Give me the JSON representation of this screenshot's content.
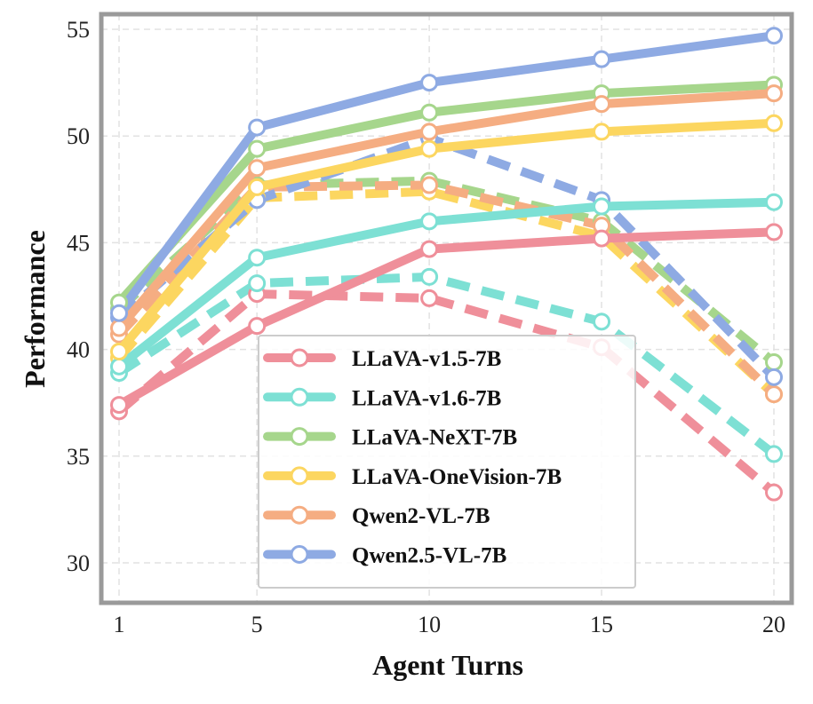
{
  "chart_data": {
    "type": "line",
    "xlabel": "Agent Turns",
    "ylabel": "Performance",
    "x": [
      1,
      5,
      10,
      15,
      20
    ],
    "xticks": [
      "1",
      "5",
      "10",
      "15",
      "20"
    ],
    "yticks": [
      "30",
      "35",
      "40",
      "45",
      "50",
      "55"
    ],
    "xlim": [
      0.5,
      20.5
    ],
    "ylim": [
      28,
      55.5
    ],
    "grid": true,
    "legend_position": "bottom-center",
    "series": [
      {
        "name": "LLaVA-v1.5-7B",
        "color": "#ef8f9a",
        "solid": [
          37.4,
          41.1,
          44.7,
          45.2,
          45.5
        ],
        "dashed": [
          37.1,
          42.6,
          42.4,
          40.1,
          33.3
        ]
      },
      {
        "name": "LLaVA-v1.6-7B",
        "color": "#7de0d4",
        "solid": [
          39.2,
          44.3,
          46.0,
          46.7,
          46.9
        ],
        "dashed": [
          38.9,
          43.1,
          43.4,
          41.3,
          35.1
        ]
      },
      {
        "name": "LLaVA-NeXT-7B",
        "color": "#a6d68c",
        "solid": [
          42.2,
          49.4,
          51.1,
          52.0,
          52.4
        ],
        "dashed": [
          41.9,
          47.7,
          47.9,
          46.0,
          39.4
        ]
      },
      {
        "name": "LLaVA-OneVision-7B",
        "color": "#fcd660",
        "solid": [
          39.9,
          47.6,
          49.4,
          50.2,
          50.6
        ],
        "dashed": [
          39.6,
          47.1,
          47.4,
          45.3,
          37.9
        ]
      },
      {
        "name": "Qwen2-VL-7B",
        "color": "#f5ad82",
        "solid": [
          41.0,
          48.5,
          50.2,
          51.5,
          52.0
        ],
        "dashed": [
          40.7,
          47.6,
          47.7,
          45.8,
          37.9
        ]
      },
      {
        "name": "Qwen2.5-VL-7B",
        "color": "#8eaae3",
        "solid": [
          41.7,
          50.4,
          52.5,
          53.6,
          54.7
        ],
        "dashed": [
          41.5,
          47.0,
          49.9,
          47.0,
          38.7
        ]
      }
    ]
  }
}
